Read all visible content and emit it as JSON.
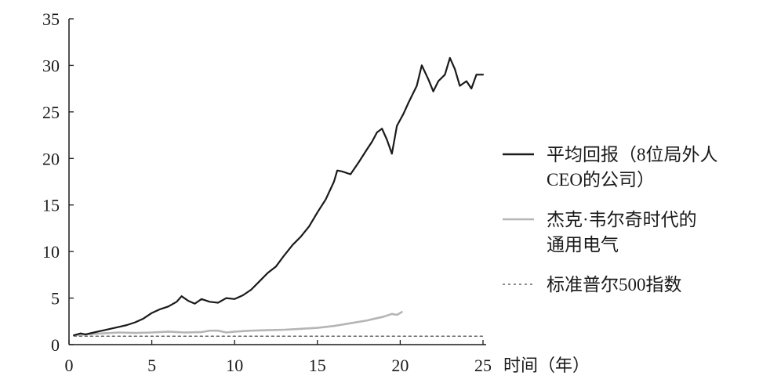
{
  "chart_data": {
    "type": "line",
    "xlabel": "时间（年）",
    "ylabel": "",
    "xlim": [
      0,
      25
    ],
    "ylim": [
      0,
      35
    ],
    "x_ticks": [
      "0",
      "5",
      "10",
      "15",
      "20",
      "25"
    ],
    "y_ticks": [
      "0",
      "5",
      "10",
      "15",
      "20",
      "25",
      "30",
      "35"
    ],
    "grid": false,
    "legend_placement": "right",
    "series": [
      {
        "name": "平均回报（8位局外人CEO的公司）",
        "legend_lines": [
          "平均回报（8位局外人",
          "CEO的公司）"
        ],
        "color": "#1a1a1a",
        "style": "solid",
        "x": [
          0.3,
          0.7,
          1.0,
          1.5,
          2.0,
          2.5,
          3.0,
          3.5,
          4.0,
          4.5,
          5.0,
          5.5,
          6.0,
          6.5,
          6.8,
          7.2,
          7.6,
          8.0,
          8.5,
          9.0,
          9.5,
          10.0,
          10.5,
          11.0,
          11.5,
          12.0,
          12.5,
          13.0,
          13.5,
          14.0,
          14.5,
          15.0,
          15.5,
          16.0,
          16.2,
          16.5,
          17.0,
          17.5,
          18.0,
          18.3,
          18.6,
          18.9,
          19.2,
          19.5,
          19.8,
          20.2,
          20.5,
          21.0,
          21.3,
          21.7,
          22.0,
          22.3,
          22.7,
          23.0,
          23.3,
          23.6,
          24.0,
          24.3,
          24.6,
          25.0
        ],
        "y": [
          1.0,
          1.2,
          1.1,
          1.3,
          1.5,
          1.7,
          1.9,
          2.1,
          2.4,
          2.8,
          3.4,
          3.8,
          4.1,
          4.6,
          5.2,
          4.7,
          4.4,
          4.9,
          4.6,
          4.5,
          5.0,
          4.9,
          5.3,
          5.9,
          6.8,
          7.7,
          8.4,
          9.6,
          10.7,
          11.6,
          12.7,
          14.2,
          15.6,
          17.5,
          18.7,
          18.6,
          18.3,
          19.6,
          21.0,
          21.8,
          22.8,
          23.2,
          22.0,
          20.5,
          23.5,
          24.8,
          26.0,
          27.8,
          30.0,
          28.5,
          27.2,
          28.3,
          29.0,
          30.8,
          29.6,
          27.8,
          28.3,
          27.5,
          29.0,
          29.0
        ]
      },
      {
        "name": "杰克·韦尔奇时代的通用电气",
        "legend_lines": [
          "杰克·韦尔奇时代的",
          "通用电气"
        ],
        "color": "#b5b5b5",
        "style": "solid",
        "x": [
          0.3,
          1.0,
          2.0,
          3.0,
          4.0,
          5.0,
          6.0,
          7.0,
          8.0,
          8.5,
          9.0,
          9.5,
          10.0,
          11.0,
          12.0,
          13.0,
          14.0,
          15.0,
          16.0,
          17.0,
          18.0,
          18.5,
          19.0,
          19.5,
          19.8,
          20.1
        ],
        "y": [
          1.0,
          1.1,
          1.2,
          1.3,
          1.25,
          1.3,
          1.4,
          1.3,
          1.35,
          1.5,
          1.5,
          1.3,
          1.4,
          1.5,
          1.55,
          1.6,
          1.7,
          1.8,
          2.0,
          2.3,
          2.6,
          2.8,
          3.0,
          3.3,
          3.2,
          3.5
        ]
      },
      {
        "name": "标准普尔500指数",
        "legend_lines": [
          "标准普尔500指数"
        ],
        "color": "#666666",
        "style": "dotted",
        "x": [
          0.3,
          25.0
        ],
        "y": [
          0.9,
          0.9
        ]
      }
    ]
  }
}
